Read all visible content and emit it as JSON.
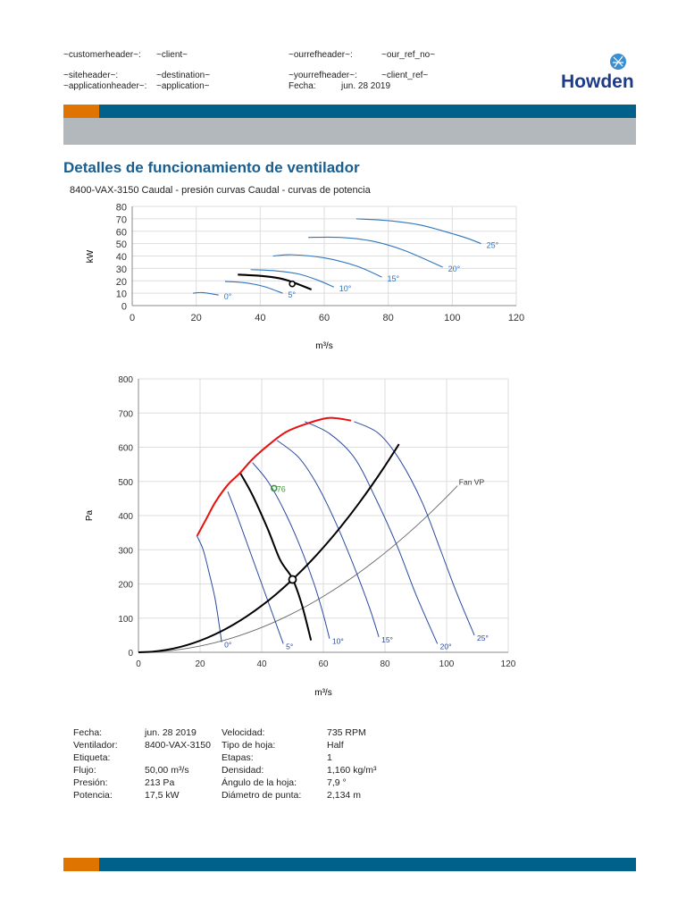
{
  "header": {
    "customer_label": "~customerheader~:",
    "customer_value": "~client~",
    "site_label": "~siteheader~:",
    "site_value": "~destination~",
    "application_label": "~applicationheader~:",
    "application_value": "~application~",
    "ourref_label": "~ourrefheader~:",
    "ourref_value": "~our_ref_no~",
    "yourref_label": "~yourrefheader~:",
    "yourref_value": "~client_ref~",
    "date_label": "Fecha:",
    "date_value": "jun. 28 2019",
    "logo_text": "Howden"
  },
  "colors": {
    "accent_orange": "#e07400",
    "accent_blue": "#00628b",
    "band_grey": "#b3b8bd",
    "title": "#1a5e8e",
    "curve_blue": "#2e75c0",
    "envelope_red": "#e81010"
  },
  "title": "Detalles de funcionamiento de ventilador",
  "chart_subtitle": "8400-VAX-3150 Caudal - presión curvas Caudal - curvas de potencia",
  "chart_data": [
    {
      "type": "line",
      "xlabel": "m³/s",
      "ylabel": "kW",
      "xlim": [
        0,
        120
      ],
      "ylim": [
        0,
        80
      ],
      "xticks": [
        0,
        20,
        40,
        60,
        80,
        100,
        120
      ],
      "yticks": [
        0,
        10,
        20,
        30,
        40,
        50,
        60,
        70,
        80
      ],
      "grid": true,
      "series": [
        {
          "name": "0°",
          "points": [
            [
              19,
              10
            ],
            [
              22,
              10.5
            ],
            [
              27,
              8.5
            ]
          ]
        },
        {
          "name": "5°",
          "points": [
            [
              29,
              19.5
            ],
            [
              35,
              18.5
            ],
            [
              41,
              15.5
            ],
            [
              47,
              10
            ]
          ]
        },
        {
          "name": "10°",
          "points": [
            [
              37,
              29
            ],
            [
              45,
              28
            ],
            [
              52,
              25.5
            ],
            [
              58,
              20.5
            ],
            [
              63,
              15
            ]
          ]
        },
        {
          "name": "15°",
          "points": [
            [
              44,
              40
            ],
            [
              50,
              41
            ],
            [
              60,
              38.5
            ],
            [
              70,
              32
            ],
            [
              78,
              23
            ]
          ]
        },
        {
          "name": "20°",
          "points": [
            [
              55,
              55
            ],
            [
              65,
              55
            ],
            [
              75,
              52
            ],
            [
              85,
              44.5
            ],
            [
              97,
              31
            ]
          ]
        },
        {
          "name": "25°",
          "points": [
            [
              70,
              70
            ],
            [
              80,
              68.5
            ],
            [
              90,
              65
            ],
            [
              100,
              58
            ],
            [
              105,
              54
            ],
            [
              109,
              50
            ]
          ]
        },
        {
          "name": "",
          "operating": true,
          "points": [
            [
              33,
              25
            ],
            [
              40,
              24
            ],
            [
              46,
              22
            ],
            [
              50,
              19
            ],
            [
              56,
              13
            ]
          ]
        }
      ],
      "operating_point": [
        50,
        17.5
      ]
    },
    {
      "type": "line",
      "xlabel": "m³/s",
      "ylabel": "Pa",
      "xlim": [
        0,
        120
      ],
      "ylim": [
        0,
        800
      ],
      "xticks": [
        0,
        20,
        40,
        60,
        80,
        100,
        120
      ],
      "yticks": [
        0,
        100,
        200,
        300,
        400,
        500,
        600,
        700,
        800
      ],
      "grid": true,
      "envelope": [
        [
          19,
          340
        ],
        [
          22,
          390
        ],
        [
          25,
          440
        ],
        [
          29,
          490
        ],
        [
          33,
          525
        ],
        [
          37,
          565
        ],
        [
          42,
          605
        ],
        [
          48,
          645
        ],
        [
          55,
          670
        ],
        [
          61,
          685
        ],
        [
          65,
          684
        ],
        [
          69,
          678
        ]
      ],
      "series": [
        {
          "name": "0°",
          "points": [
            [
              19,
              340
            ],
            [
              21,
              300
            ],
            [
              23,
              230
            ],
            [
              25,
              150
            ],
            [
              27,
              30
            ]
          ]
        },
        {
          "name": "5°",
          "points": [
            [
              29,
              470
            ],
            [
              32,
              400
            ],
            [
              36,
              300
            ],
            [
              40,
              200
            ],
            [
              44,
              100
            ],
            [
              47,
              25
            ]
          ]
        },
        {
          "name": "10°",
          "points": [
            [
              37,
              555
            ],
            [
              42,
              500
            ],
            [
              47,
              420
            ],
            [
              52,
              320
            ],
            [
              57,
              200
            ],
            [
              60,
              110
            ],
            [
              62,
              40
            ]
          ]
        },
        {
          "name": "15°",
          "points": [
            [
              45,
              620
            ],
            [
              52,
              570
            ],
            [
              58,
              490
            ],
            [
              64,
              380
            ],
            [
              70,
              250
            ],
            [
              75,
              130
            ],
            [
              78,
              45
            ]
          ]
        },
        {
          "name": "20°",
          "points": [
            [
              54,
              675
            ],
            [
              62,
              640
            ],
            [
              70,
              570
            ],
            [
              77,
              450
            ],
            [
              84,
              310
            ],
            [
              90,
              170
            ],
            [
              97,
              25
            ]
          ]
        },
        {
          "name": "25°",
          "points": [
            [
              70,
              675
            ],
            [
              78,
              640
            ],
            [
              85,
              560
            ],
            [
              92,
              440
            ],
            [
              98,
              300
            ],
            [
              103,
              180
            ],
            [
              109,
              50
            ]
          ]
        },
        {
          "name": "",
          "operating": true,
          "points": [
            [
              33,
              525
            ],
            [
              37,
              460
            ],
            [
              42,
              360
            ],
            [
              46,
              270
            ],
            [
              50,
              215
            ],
            [
              53,
              140
            ],
            [
              56,
              35
            ]
          ]
        }
      ],
      "system_curve": {
        "k": 0.0852,
        "xmax": 89
      },
      "fan_vp": {
        "name": "Fan VP",
        "k": 0.04545,
        "xmax": 109
      },
      "operating_point": [
        50,
        213
      ],
      "marker": {
        "label": "76",
        "point": [
          44,
          480
        ]
      }
    }
  ],
  "details": {
    "left": [
      [
        "Fecha:",
        "jun. 28 2019"
      ],
      [
        "Ventilador:",
        "8400-VAX-3150"
      ],
      [
        "Etiqueta:",
        ""
      ],
      [
        "Flujo:",
        "50,00 m³/s"
      ],
      [
        "Presión:",
        "213 Pa"
      ],
      [
        "Potencia:",
        "17,5 kW"
      ]
    ],
    "right": [
      [
        "Velocidad:",
        "735 RPM"
      ],
      [
        "Tipo de hoja:",
        "Half"
      ],
      [
        "Etapas:",
        "1"
      ],
      [
        "Densidad:",
        "1,160 kg/m³"
      ],
      [
        "Ángulo de la hoja:",
        "7,9 °"
      ],
      [
        "Diámetro de punta:",
        "2,134 m"
      ]
    ]
  }
}
